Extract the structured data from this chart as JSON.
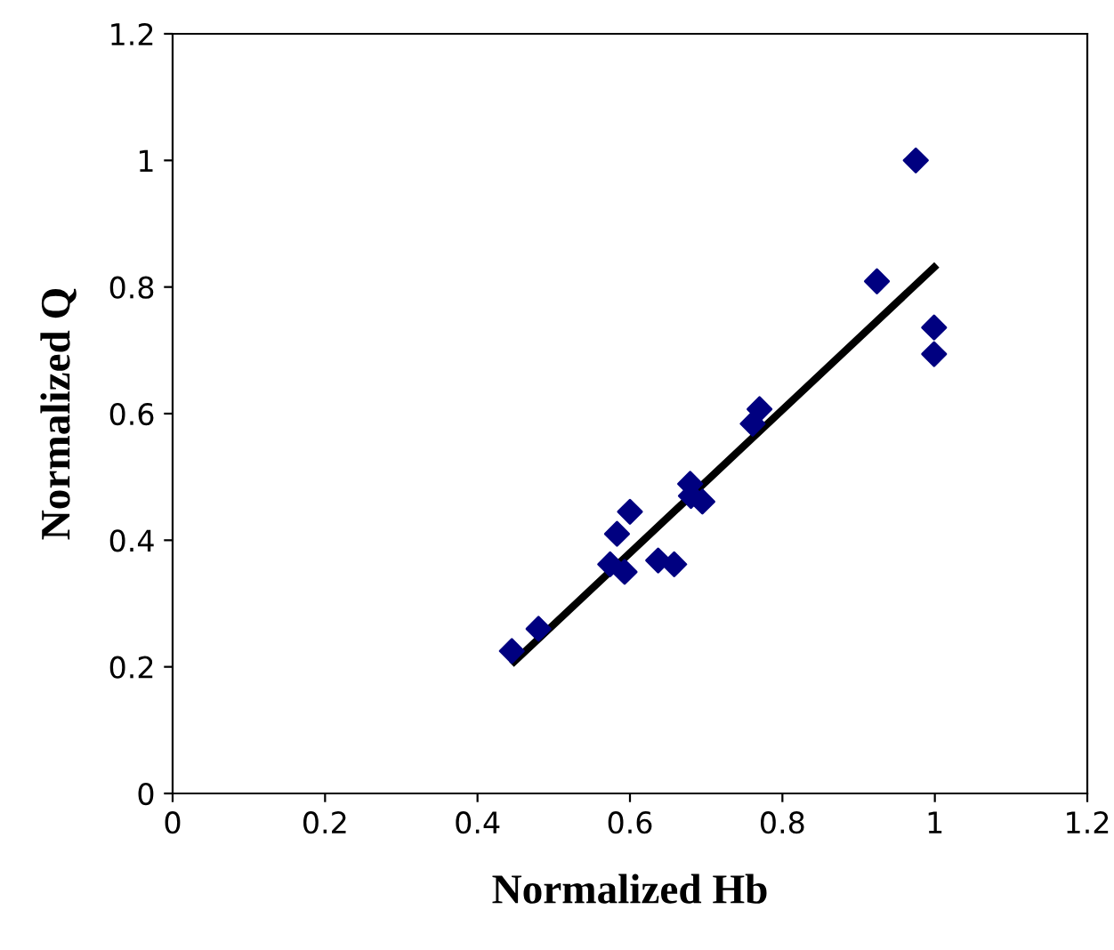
{
  "chart_data": {
    "type": "scatter",
    "xlabel": "Normalized Hb",
    "ylabel": "Normalized Q",
    "xlim": [
      0,
      1.2
    ],
    "ylim": [
      0,
      1.2
    ],
    "xticks": [
      0,
      0.2,
      0.4,
      0.6,
      0.8,
      1,
      1.2
    ],
    "yticks": [
      0,
      0.2,
      0.4,
      0.6,
      0.8,
      1,
      1.2
    ],
    "grid": false,
    "legend": false,
    "series": [
      {
        "marker": "diamond",
        "color": "#000080",
        "x": [
          0.445,
          0.48,
          0.583,
          0.6,
          0.574,
          0.593,
          0.637,
          0.658,
          0.679,
          0.695,
          0.68,
          0.77,
          0.761,
          0.975,
          0.924,
          0.999,
          0.999
        ],
        "values": [
          0.225,
          0.26,
          0.41,
          0.445,
          0.362,
          0.35,
          0.368,
          0.362,
          0.489,
          0.461,
          0.47,
          0.607,
          0.584,
          1.0,
          0.809,
          0.736,
          0.694
        ]
      },
      {
        "type": "line",
        "marker": "none",
        "color": "#000000",
        "x": [
          0.448,
          0.999
        ],
        "values": [
          0.208,
          0.831
        ]
      }
    ]
  }
}
